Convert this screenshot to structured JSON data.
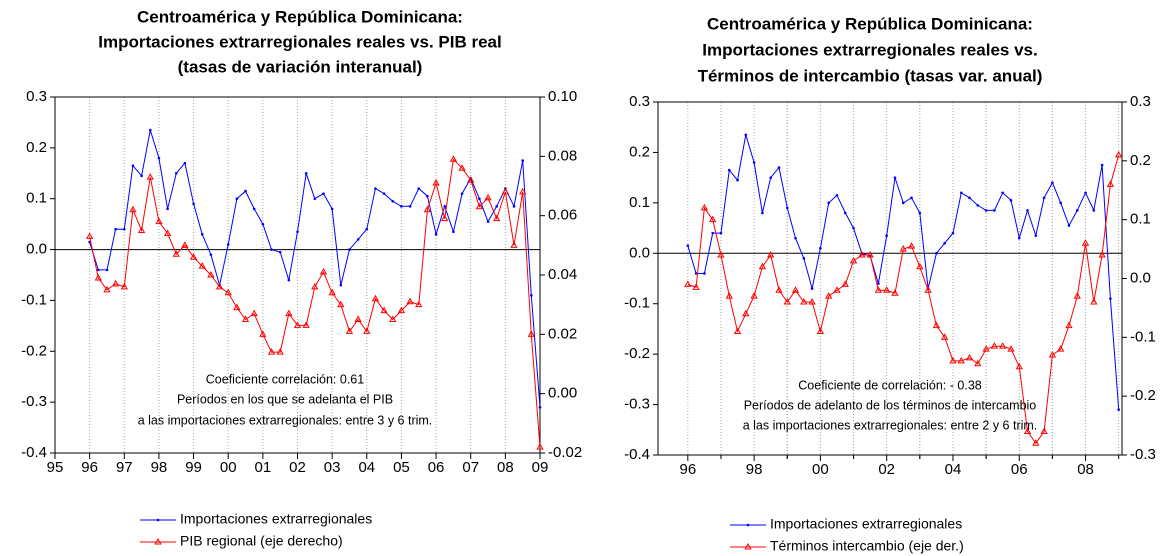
{
  "chart_data": [
    {
      "type": "line",
      "title": [
        "Centroamérica y República Dominicana:",
        "Importaciones extrarregionales reales vs. PIB real",
        "(tasas de variación interanual)"
      ],
      "annotations": [
        "Coeficiente correlación: 0.61",
        "Períodos en los que se adelanta el PIB",
        "a las importaciones extrarregionales: entre 3 y 6 trim."
      ],
      "x": [
        1996,
        1996.25,
        1996.5,
        1996.75,
        1997,
        1997.25,
        1997.5,
        1997.75,
        1998,
        1998.25,
        1998.5,
        1998.75,
        1999,
        1999.25,
        1999.5,
        1999.75,
        2000,
        2000.25,
        2000.5,
        2000.75,
        2001,
        2001.25,
        2001.5,
        2001.75,
        2002,
        2002.25,
        2002.5,
        2002.75,
        2003,
        2003.25,
        2003.5,
        2003.75,
        2004,
        2004.25,
        2004.5,
        2004.75,
        2005,
        2005.25,
        2005.5,
        2005.75,
        2006,
        2006.25,
        2006.5,
        2006.75,
        2007,
        2007.25,
        2007.5,
        2007.75,
        2008,
        2008.25,
        2008.5,
        2008.75,
        2009
      ],
      "series": [
        {
          "name": "Importaciones extrarregionales",
          "color": "#0000ff",
          "marker": "dot",
          "values": [
            0.015,
            -0.04,
            -0.04,
            0.04,
            0.04,
            0.165,
            0.145,
            0.235,
            0.18,
            0.08,
            0.15,
            0.17,
            0.09,
            0.03,
            -0.01,
            -0.07,
            0.01,
            0.1,
            0.115,
            0.08,
            0.05,
            0.0,
            -0.005,
            -0.06,
            0.035,
            0.15,
            0.1,
            0.11,
            0.08,
            -0.07,
            0.0,
            0.02,
            0.04,
            0.12,
            0.11,
            0.095,
            0.085,
            0.085,
            0.12,
            0.105,
            0.03,
            0.085,
            0.035,
            0.11,
            0.14,
            0.1,
            0.055,
            0.085,
            0.12,
            0.085,
            0.175,
            -0.09,
            -0.31
          ]
        },
        {
          "name": "PIB regional (eje derecho)",
          "color": "#ff0000",
          "marker": "triangle",
          "axis": "y2",
          "values": [
            0.053,
            0.039,
            0.035,
            0.037,
            0.036,
            0.062,
            0.055,
            0.073,
            0.058,
            0.054,
            0.047,
            0.05,
            0.046,
            0.043,
            0.04,
            0.036,
            0.034,
            0.029,
            0.025,
            0.027,
            0.02,
            0.014,
            0.014,
            0.027,
            0.023,
            0.023,
            0.036,
            0.041,
            0.034,
            0.03,
            0.021,
            0.025,
            0.021,
            0.032,
            0.028,
            0.025,
            0.028,
            0.031,
            0.03,
            0.062,
            0.071,
            0.059,
            0.079,
            0.076,
            0.072,
            0.063,
            0.066,
            0.059,
            0.068,
            0.05,
            0.068,
            0.02,
            -0.018
          ]
        }
      ],
      "xlim": [
        1995,
        2009
      ],
      "xticks": [
        {
          "value": 1995,
          "label": "95"
        },
        {
          "value": 1996,
          "label": "96"
        },
        {
          "value": 1997,
          "label": "97"
        },
        {
          "value": 1998,
          "label": "98"
        },
        {
          "value": 1999,
          "label": "99"
        },
        {
          "value": 2000,
          "label": "00"
        },
        {
          "value": 2001,
          "label": "01"
        },
        {
          "value": 2002,
          "label": "02"
        },
        {
          "value": 2003,
          "label": "03"
        },
        {
          "value": 2004,
          "label": "04"
        },
        {
          "value": 2005,
          "label": "05"
        },
        {
          "value": 2006,
          "label": "06"
        },
        {
          "value": 2007,
          "label": "07"
        },
        {
          "value": 2008,
          "label": "08"
        },
        {
          "value": 2009,
          "label": "09"
        }
      ],
      "ylim": [
        -0.4,
        0.3
      ],
      "yticks": [
        -0.4,
        -0.3,
        -0.2,
        -0.1,
        {
          "value": 0,
          "label": "0.0"
        },
        0.1,
        0.2,
        0.3
      ],
      "y2lim": [
        -0.02,
        0.1
      ],
      "y2ticks": [
        -0.02,
        {
          "value": 0,
          "label": "0.00"
        },
        0.02,
        0.04,
        0.06,
        0.08,
        {
          "value": 0.1,
          "label": "0.10"
        }
      ],
      "grid": true
    },
    {
      "type": "line",
      "title": [
        "Centroamérica y República Dominicana:",
        "Importaciones extrarregionales reales vs.",
        "Términos de intercambio (tasas var. anual)"
      ],
      "annotations": [
        "Coeficiente de correlación: - 0.38",
        "Períodos de adelanto de los términos de intercambio",
        "a las importaciones extrarregionales: entre 2 y 6 trim."
      ],
      "x": [
        1996,
        1996.25,
        1996.5,
        1996.75,
        1997,
        1997.25,
        1997.5,
        1997.75,
        1998,
        1998.25,
        1998.5,
        1998.75,
        1999,
        1999.25,
        1999.5,
        1999.75,
        2000,
        2000.25,
        2000.5,
        2000.75,
        2001,
        2001.25,
        2001.5,
        2001.75,
        2002,
        2002.25,
        2002.5,
        2002.75,
        2003,
        2003.25,
        2003.5,
        2003.75,
        2004,
        2004.25,
        2004.5,
        2004.75,
        2005,
        2005.25,
        2005.5,
        2005.75,
        2006,
        2006.25,
        2006.5,
        2006.75,
        2007,
        2007.25,
        2007.5,
        2007.75,
        2008,
        2008.25,
        2008.5,
        2008.75,
        2009
      ],
      "series": [
        {
          "name": "Importaciones extrarregionales",
          "color": "#0000ff",
          "marker": "dot",
          "values": [
            0.015,
            -0.04,
            -0.04,
            0.04,
            0.04,
            0.165,
            0.145,
            0.235,
            0.18,
            0.08,
            0.15,
            0.17,
            0.09,
            0.03,
            -0.01,
            -0.07,
            0.01,
            0.1,
            0.115,
            0.08,
            0.05,
            0.0,
            -0.005,
            -0.06,
            0.035,
            0.15,
            0.1,
            0.11,
            0.08,
            -0.07,
            0.0,
            0.02,
            0.04,
            0.12,
            0.11,
            0.095,
            0.085,
            0.085,
            0.12,
            0.105,
            0.03,
            0.085,
            0.035,
            0.11,
            0.14,
            0.1,
            0.055,
            0.085,
            0.12,
            0.085,
            0.175,
            -0.09,
            -0.31
          ]
        },
        {
          "name": "Términos intercambio (eje der.)",
          "color": "#ff0000",
          "marker": "triangle",
          "axis": "y2",
          "values": [
            -0.01,
            -0.015,
            0.12,
            0.1,
            0.04,
            -0.03,
            -0.09,
            -0.06,
            -0.03,
            0.02,
            0.04,
            -0.02,
            -0.04,
            -0.02,
            -0.04,
            -0.04,
            -0.09,
            -0.03,
            -0.02,
            -0.01,
            0.03,
            0.04,
            0.04,
            -0.02,
            -0.02,
            -0.025,
            0.05,
            0.055,
            0.02,
            -0.02,
            -0.08,
            -0.1,
            -0.14,
            -0.14,
            -0.135,
            -0.145,
            -0.12,
            -0.115,
            -0.115,
            -0.12,
            -0.15,
            -0.26,
            -0.28,
            -0.26,
            -0.13,
            -0.12,
            -0.08,
            -0.03,
            0.06,
            -0.04,
            0.04,
            0.16,
            0.21
          ]
        }
      ],
      "xlim": [
        1995.1,
        2009.1
      ],
      "xticks": [
        {
          "value": 1996,
          "label": "96"
        },
        {
          "value": 1998,
          "label": "98"
        },
        {
          "value": 2000,
          "label": "00"
        },
        {
          "value": 2002,
          "label": "02"
        },
        {
          "value": 2004,
          "label": "04"
        },
        {
          "value": 2006,
          "label": "06"
        },
        {
          "value": 2008,
          "label": "08"
        }
      ],
      "ylim": [
        -0.4,
        0.3
      ],
      "yticks": [
        -0.4,
        -0.3,
        -0.2,
        -0.1,
        {
          "value": 0,
          "label": "0.0"
        },
        0.1,
        0.2,
        0.3
      ],
      "y2lim": [
        -0.3,
        0.3
      ],
      "y2ticks": [
        -0.3,
        -0.2,
        -0.1,
        {
          "value": 0,
          "label": "0.0"
        },
        0.1,
        0.2,
        0.3
      ],
      "grid": true
    }
  ]
}
